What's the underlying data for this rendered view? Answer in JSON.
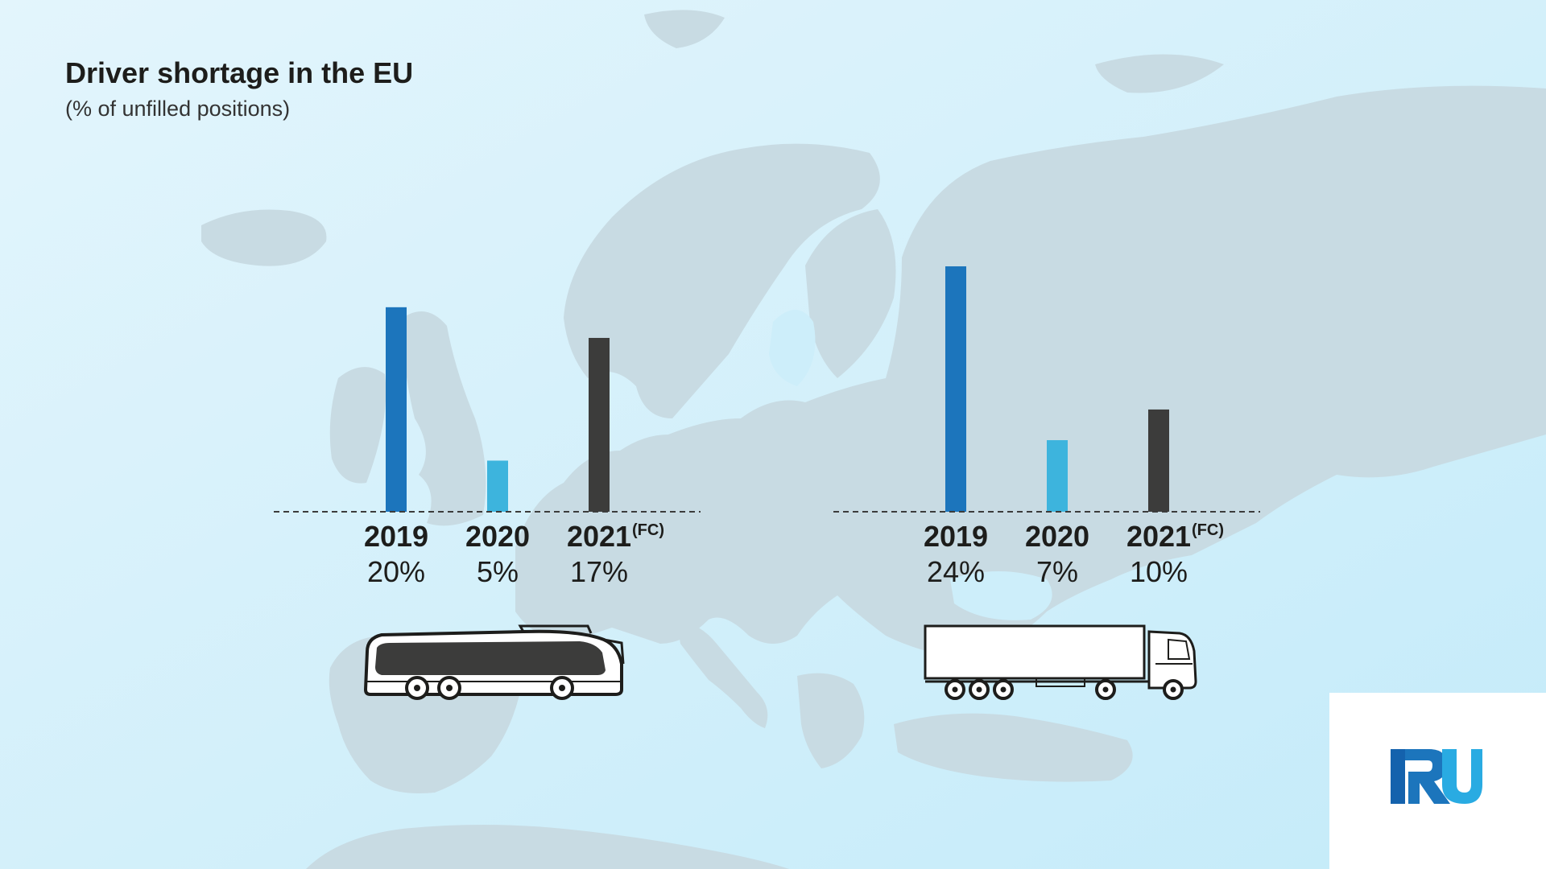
{
  "title": "Driver shortage in the EU",
  "subtitle": "(% of unfilled positions)",
  "colors": {
    "y2019": "#1c75bc",
    "y2020": "#3db4dd",
    "y2021": "#3c3c3b",
    "map_land": "#c8dbe3",
    "sea": "#cdeefa",
    "logo_dark": "#1462ad",
    "logo_light": "#29abe2"
  },
  "icons": {
    "bus": "coach-bus-icon",
    "truck": "semi-truck-icon",
    "logo": "iru-logo"
  },
  "logo_text": "IRU",
  "chart_data": [
    {
      "type": "bar",
      "vehicle": "bus",
      "title": "",
      "xlabel": "",
      "ylabel": "",
      "categories": [
        "2019",
        "2020",
        "2021"
      ],
      "category_suffix": [
        "",
        "",
        "(FC)"
      ],
      "values": [
        20,
        5,
        17
      ],
      "value_labels": [
        "20%",
        "5%",
        "17%"
      ],
      "colors": [
        "#1c75bc",
        "#3db4dd",
        "#3c3c3b"
      ],
      "ylim": [
        0,
        24
      ],
      "grid": false,
      "baseline": "dashed"
    },
    {
      "type": "bar",
      "vehicle": "truck",
      "title": "",
      "xlabel": "",
      "ylabel": "",
      "categories": [
        "2019",
        "2020",
        "2021"
      ],
      "category_suffix": [
        "",
        "",
        "(FC)"
      ],
      "values": [
        24,
        7,
        10
      ],
      "value_labels": [
        "24%",
        "7%",
        "10%"
      ],
      "colors": [
        "#1c75bc",
        "#3db4dd",
        "#3c3c3b"
      ],
      "ylim": [
        0,
        24
      ],
      "grid": false,
      "baseline": "dashed"
    }
  ]
}
